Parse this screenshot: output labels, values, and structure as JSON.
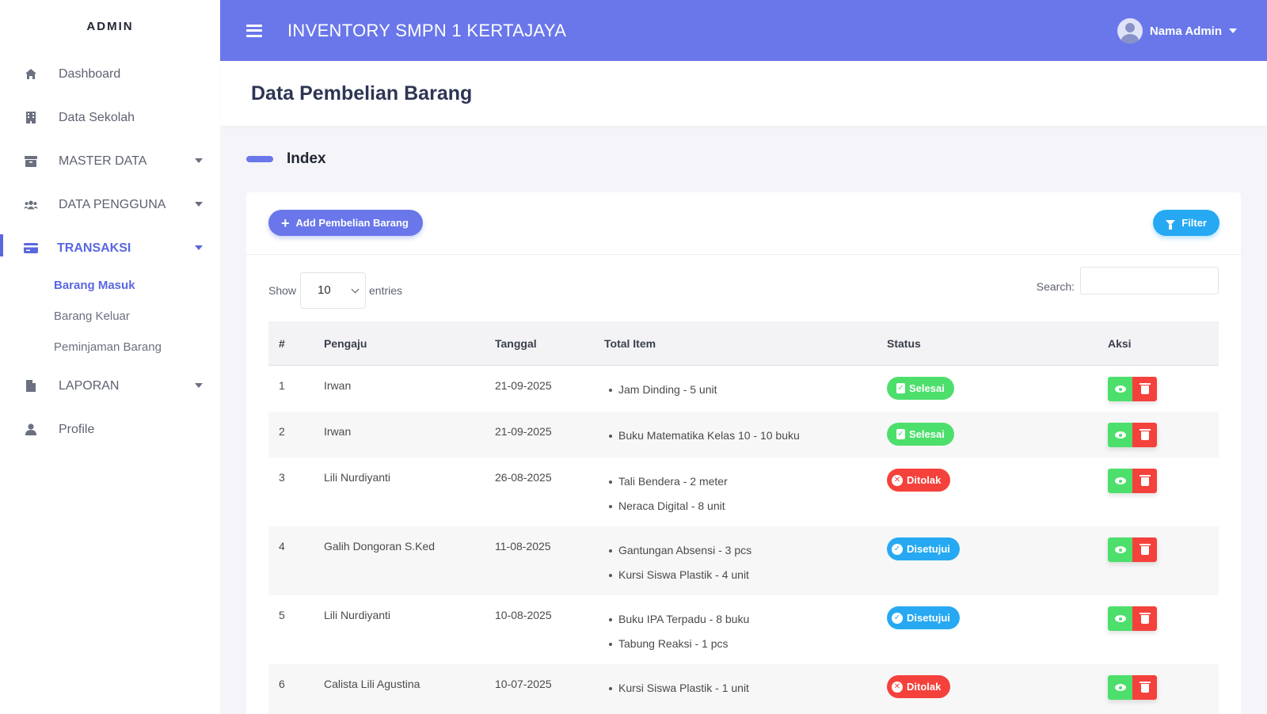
{
  "sidebar": {
    "brand": "ADMIN",
    "items": [
      {
        "label": "Dashboard"
      },
      {
        "label": "Data Sekolah"
      },
      {
        "label": "MASTER DATA"
      },
      {
        "label": "DATA PENGGUNA"
      },
      {
        "label": "TRANSAKSI",
        "active": true,
        "children": [
          {
            "label": "Barang Masuk",
            "active": true
          },
          {
            "label": "Barang Keluar"
          },
          {
            "label": "Peminjaman Barang"
          }
        ]
      },
      {
        "label": "LAPORAN"
      },
      {
        "label": "Profile"
      }
    ]
  },
  "topbar": {
    "title": "INVENTORY SMPN 1 KERTAJAYA",
    "user_name": "Nama Admin"
  },
  "page": {
    "title": "Data Pembelian Barang",
    "section": "Index"
  },
  "toolbar": {
    "add_label": "Add Pembelian Barang",
    "filter_label": "Filter"
  },
  "datatable": {
    "show_label": "Show",
    "entries_value": "10",
    "entries_label": "entries",
    "search_label": "Search:",
    "search_value": ""
  },
  "table": {
    "headers": [
      "#",
      "Pengaju",
      "Tanggal",
      "Total Item",
      "Status",
      "Aksi"
    ],
    "rows": [
      {
        "no": "1",
        "pengaju": "Irwan",
        "tanggal": "21-09-2025",
        "items": [
          "Jam Dinding - 5 unit"
        ],
        "status": "Selesai"
      },
      {
        "no": "2",
        "pengaju": "Irwan",
        "tanggal": "21-09-2025",
        "items": [
          "Buku Matematika Kelas 10 - 10 buku"
        ],
        "status": "Selesai"
      },
      {
        "no": "3",
        "pengaju": "Lili Nurdiyanti",
        "tanggal": "26-08-2025",
        "items": [
          "Tali Bendera - 2 meter",
          "Neraca Digital - 8 unit"
        ],
        "status": "Ditolak"
      },
      {
        "no": "4",
        "pengaju": "Galih Dongoran S.Ked",
        "tanggal": "11-08-2025",
        "items": [
          "Gantungan Absensi - 3 pcs",
          "Kursi Siswa Plastik - 4 unit"
        ],
        "status": "Disetujui"
      },
      {
        "no": "5",
        "pengaju": "Lili Nurdiyanti",
        "tanggal": "10-08-2025",
        "items": [
          "Buku IPA Terpadu - 8 buku",
          "Tabung Reaksi - 1 pcs"
        ],
        "status": "Disetujui"
      },
      {
        "no": "6",
        "pengaju": "Calista Lili Agustina",
        "tanggal": "10-07-2025",
        "items": [
          "Kursi Siswa Plastik - 1 unit"
        ],
        "status": "Ditolak"
      }
    ]
  },
  "colors": {
    "primary": "#6977ea",
    "success": "#4ddf6c",
    "danger": "#f5413b",
    "info": "#26a9f2"
  }
}
